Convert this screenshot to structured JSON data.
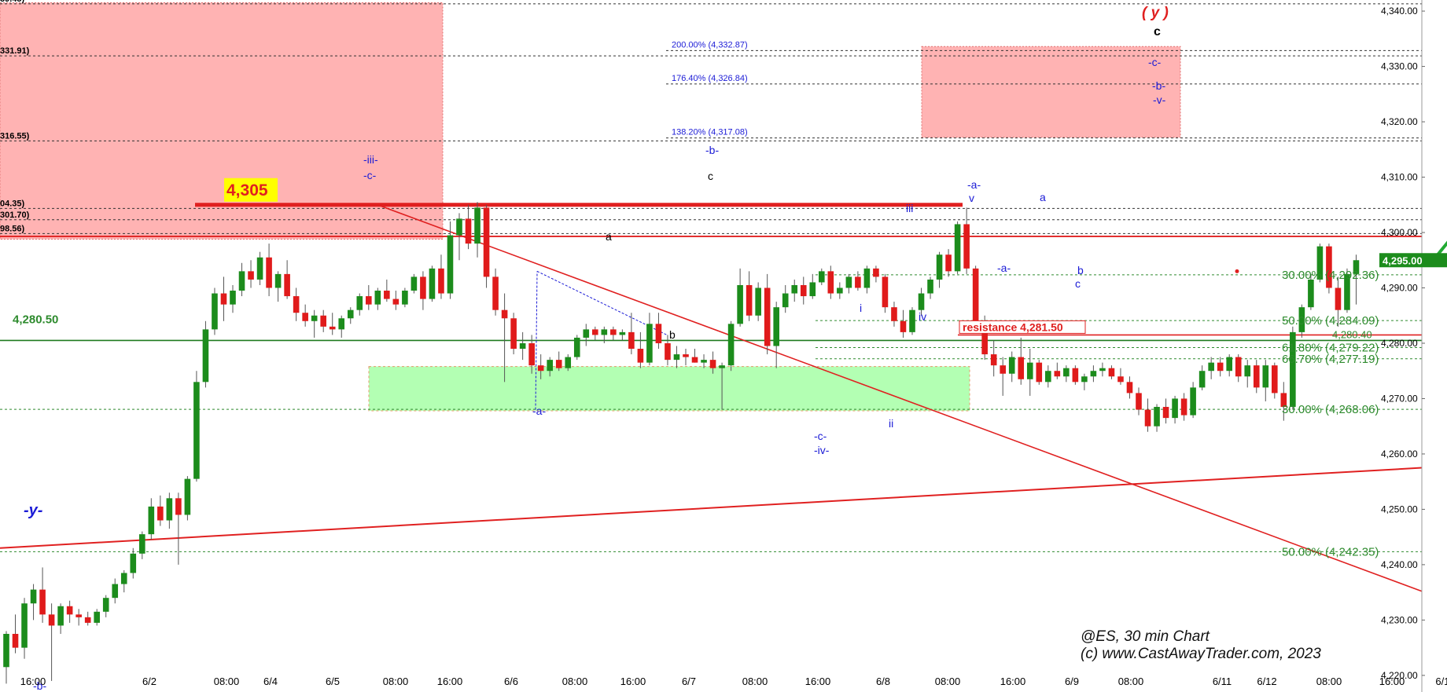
{
  "chart_data": {
    "type": "candlestick",
    "title": "@ES, 30 min Chart",
    "copyright": "(c) www.CastAwayTrader.com, 2023",
    "ylim": [
      4217,
      4342
    ],
    "y_ticks": [
      "4,220.00",
      "4,230.00",
      "4,240.00",
      "4,250.00",
      "4,260.00",
      "4,270.00",
      "4,280.00",
      "4,290.00",
      "4,300.00",
      "4,310.00",
      "4,320.00",
      "4,330.00",
      "4,340.00"
    ],
    "y_tick_values": [
      4220,
      4230,
      4240,
      4250,
      4260,
      4270,
      4280,
      4290,
      4300,
      4310,
      4320,
      4330,
      4340
    ],
    "x_ticks": [
      "16:00",
      "6/2",
      "08:00",
      "6/4",
      "6/5",
      "08:00",
      "16:00",
      "6/6",
      "08:00",
      "16:00",
      "6/7",
      "08:00",
      "16:00",
      "6/8",
      "08:00",
      "16:00",
      "6/9",
      "08:00",
      "6/11",
      "6/12",
      "08:00",
      "16:00",
      "6/13"
    ],
    "last_price": "4,295.00",
    "last_price_value": 4295.0,
    "colors": {
      "up": "#1c8c1c",
      "down": "#e01b1b",
      "fib_blue": "#1b1bd6",
      "fib_green": "#2e8b2e",
      "wave_black": "#000000",
      "red_zone": "#ffb3b3",
      "green_zone": "#b3ffb3",
      "path_green": "#22aa33",
      "path_red": "#e81c1c"
    },
    "fib_levels_blue": [
      {
        "label": "200.00% (4,332.87)",
        "value": 4332.87
      },
      {
        "label": "176.40% (4,326.84)",
        "value": 4326.84
      },
      {
        "label": "138.20% (4,317.08)",
        "value": 4317.08
      }
    ],
    "fib_levels_green": [
      {
        "label": "30.00% (4,292.36)",
        "value": 4292.36
      },
      {
        "label": "50.00% (4,284.09)",
        "value": 4284.09
      },
      {
        "label": "61.80% (4,279.22)",
        "value": 4279.22
      },
      {
        "label": "66.70% (4,277.19)",
        "value": 4277.19
      },
      {
        "label": "30.00% (4,268.06)",
        "value": 4268.06
      },
      {
        "label": "50.00% (4,242.35)",
        "value": 4242.35
      }
    ],
    "left_partial_labels": [
      {
        "label": "39.45)",
        "value": 4341.3
      },
      {
        "label": "331.91)",
        "value": 4331.91
      },
      {
        "label": "316.55)",
        "value": 4316.55
      },
      {
        "label": "04.35)",
        "value": 4304.35
      },
      {
        "label": "301.70)",
        "value": 4302.3
      },
      {
        "label": "98.56)",
        "value": 4299.8
      }
    ],
    "key_levels": {
      "top_resistance_label": "4,305",
      "top_resistance_value": 4305.0,
      "support_label": "4,280.50",
      "support_value": 4280.5,
      "resistance_text": "resistance  4,281.50",
      "resistance_value": 4281.5,
      "right_small_value": "4,280.40"
    },
    "wave_labels_blue": [
      "-iii-",
      "-c-",
      "-b-",
      "-a-",
      "i",
      "ii",
      "iii",
      "iv",
      "v",
      "-c-",
      "-iv-",
      "-a-",
      "-a-",
      "a",
      "b",
      "c",
      "-b-",
      "-v-",
      "-c-",
      "-y-",
      "-b-"
    ],
    "wave_labels_black": [
      "a",
      "b",
      "c",
      "c"
    ],
    "wave_label_red": "( y )",
    "candles": [
      {
        "o": 4221.5,
        "h": 4228.0,
        "l": 4218.5,
        "c": 4227.5
      },
      {
        "o": 4227.5,
        "h": 4231.0,
        "l": 4224.0,
        "c": 4225.0
      },
      {
        "o": 4225.0,
        "h": 4234.0,
        "l": 4223.0,
        "c": 4233.0
      },
      {
        "o": 4233.0,
        "h": 4236.5,
        "l": 4230.0,
        "c": 4235.5
      },
      {
        "o": 4235.5,
        "h": 4239.5,
        "l": 4229.5,
        "c": 4231.0
      },
      {
        "o": 4231.0,
        "h": 4233.0,
        "l": 4219.0,
        "c": 4229.0
      },
      {
        "o": 4229.0,
        "h": 4233.0,
        "l": 4227.5,
        "c": 4232.5
      },
      {
        "o": 4232.5,
        "h": 4233.5,
        "l": 4229.5,
        "c": 4231.0
      },
      {
        "o": 4231.0,
        "h": 4232.0,
        "l": 4229.0,
        "c": 4230.5
      },
      {
        "o": 4230.5,
        "h": 4231.5,
        "l": 4229.0,
        "c": 4229.5
      },
      {
        "o": 4229.5,
        "h": 4232.0,
        "l": 4229.0,
        "c": 4231.5
      },
      {
        "o": 4231.5,
        "h": 4234.5,
        "l": 4230.5,
        "c": 4234.0
      },
      {
        "o": 4234.0,
        "h": 4237.5,
        "l": 4233.0,
        "c": 4236.5
      },
      {
        "o": 4236.5,
        "h": 4239.0,
        "l": 4235.0,
        "c": 4238.5
      },
      {
        "o": 4238.5,
        "h": 4243.0,
        "l": 4237.5,
        "c": 4242.0
      },
      {
        "o": 4242.0,
        "h": 4246.0,
        "l": 4241.0,
        "c": 4245.5
      },
      {
        "o": 4245.5,
        "h": 4252.0,
        "l": 4244.5,
        "c": 4250.5
      },
      {
        "o": 4250.5,
        "h": 4252.5,
        "l": 4247.0,
        "c": 4248.0
      },
      {
        "o": 4248.0,
        "h": 4253.0,
        "l": 4246.5,
        "c": 4252.0
      },
      {
        "o": 4252.0,
        "h": 4253.0,
        "l": 4240.0,
        "c": 4249.0
      },
      {
        "o": 4249.0,
        "h": 4256.0,
        "l": 4248.0,
        "c": 4255.5
      },
      {
        "o": 4255.5,
        "h": 4275.0,
        "l": 4255.0,
        "c": 4273.0
      },
      {
        "o": 4273.0,
        "h": 4284.0,
        "l": 4272.0,
        "c": 4282.5
      },
      {
        "o": 4282.5,
        "h": 4290.0,
        "l": 4281.5,
        "c": 4289.0
      },
      {
        "o": 4289.0,
        "h": 4292.0,
        "l": 4284.0,
        "c": 4287.0
      },
      {
        "o": 4287.0,
        "h": 4290.5,
        "l": 4285.5,
        "c": 4289.5
      },
      {
        "o": 4289.5,
        "h": 4294.5,
        "l": 4288.5,
        "c": 4293.0
      },
      {
        "o": 4293.0,
        "h": 4295.0,
        "l": 4290.0,
        "c": 4291.5
      },
      {
        "o": 4291.5,
        "h": 4296.5,
        "l": 4290.5,
        "c": 4295.5
      },
      {
        "o": 4295.5,
        "h": 4298.0,
        "l": 4288.5,
        "c": 4290.0
      },
      {
        "o": 4290.0,
        "h": 4293.0,
        "l": 4287.5,
        "c": 4292.5
      },
      {
        "o": 4292.5,
        "h": 4295.0,
        "l": 4288.0,
        "c": 4288.5
      },
      {
        "o": 4288.5,
        "h": 4290.0,
        "l": 4284.0,
        "c": 4285.5
      },
      {
        "o": 4285.5,
        "h": 4287.0,
        "l": 4283.0,
        "c": 4284.0
      },
      {
        "o": 4284.0,
        "h": 4286.0,
        "l": 4281.0,
        "c": 4285.0
      },
      {
        "o": 4285.0,
        "h": 4286.0,
        "l": 4282.0,
        "c": 4283.0
      },
      {
        "o": 4283.0,
        "h": 4285.5,
        "l": 4281.5,
        "c": 4282.5
      },
      {
        "o": 4282.5,
        "h": 4285.0,
        "l": 4281.0,
        "c": 4284.5
      },
      {
        "o": 4284.5,
        "h": 4286.5,
        "l": 4283.5,
        "c": 4286.0
      },
      {
        "o": 4286.0,
        "h": 4289.0,
        "l": 4285.0,
        "c": 4288.5
      },
      {
        "o": 4288.5,
        "h": 4290.5,
        "l": 4286.0,
        "c": 4287.0
      },
      {
        "o": 4287.0,
        "h": 4290.0,
        "l": 4286.0,
        "c": 4289.5
      },
      {
        "o": 4289.5,
        "h": 4291.5,
        "l": 4287.5,
        "c": 4288.0
      },
      {
        "o": 4288.0,
        "h": 4289.5,
        "l": 4286.0,
        "c": 4287.0
      },
      {
        "o": 4287.0,
        "h": 4290.0,
        "l": 4286.5,
        "c": 4289.5
      },
      {
        "o": 4289.5,
        "h": 4292.5,
        "l": 4289.0,
        "c": 4292.0
      },
      {
        "o": 4292.0,
        "h": 4293.0,
        "l": 4286.0,
        "c": 4288.0
      },
      {
        "o": 4288.0,
        "h": 4294.0,
        "l": 4287.5,
        "c": 4293.5
      },
      {
        "o": 4293.5,
        "h": 4296.0,
        "l": 4288.0,
        "c": 4289.0
      },
      {
        "o": 4289.0,
        "h": 4302.0,
        "l": 4288.0,
        "c": 4299.5
      },
      {
        "o": 4299.5,
        "h": 4303.5,
        "l": 4295.0,
        "c": 4302.5
      },
      {
        "o": 4302.5,
        "h": 4305.0,
        "l": 4297.0,
        "c": 4298.0
      },
      {
        "o": 4298.0,
        "h": 4305.5,
        "l": 4295.5,
        "c": 4304.5
      },
      {
        "o": 4304.5,
        "h": 4305.0,
        "l": 4290.0,
        "c": 4292.0
      },
      {
        "o": 4292.0,
        "h": 4293.5,
        "l": 4285.0,
        "c": 4286.0
      },
      {
        "o": 4286.0,
        "h": 4289.0,
        "l": 4273.0,
        "c": 4284.5
      },
      {
        "o": 4284.5,
        "h": 4285.5,
        "l": 4278.0,
        "c": 4279.0
      },
      {
        "o": 4279.0,
        "h": 4282.0,
        "l": 4277.0,
        "c": 4280.0
      },
      {
        "o": 4280.0,
        "h": 4281.5,
        "l": 4274.5,
        "c": 4276.0
      },
      {
        "o": 4276.0,
        "h": 4278.0,
        "l": 4273.5,
        "c": 4275.0
      },
      {
        "o": 4275.0,
        "h": 4277.5,
        "l": 4274.0,
        "c": 4277.0
      },
      {
        "o": 4277.0,
        "h": 4278.5,
        "l": 4275.0,
        "c": 4275.5
      },
      {
        "o": 4275.5,
        "h": 4278.0,
        "l": 4275.0,
        "c": 4277.5
      },
      {
        "o": 4277.5,
        "h": 4281.5,
        "l": 4277.0,
        "c": 4281.0
      },
      {
        "o": 4281.0,
        "h": 4283.5,
        "l": 4279.5,
        "c": 4282.5
      },
      {
        "o": 4282.5,
        "h": 4283.0,
        "l": 4280.5,
        "c": 4281.5
      },
      {
        "o": 4281.5,
        "h": 4283.0,
        "l": 4280.0,
        "c": 4282.5
      },
      {
        "o": 4282.5,
        "h": 4283.0,
        "l": 4280.5,
        "c": 4281.5
      },
      {
        "o": 4281.5,
        "h": 4282.5,
        "l": 4280.5,
        "c": 4282.0
      },
      {
        "o": 4282.0,
        "h": 4285.5,
        "l": 4278.0,
        "c": 4279.0
      },
      {
        "o": 4279.0,
        "h": 4282.0,
        "l": 4275.5,
        "c": 4276.5
      },
      {
        "o": 4276.5,
        "h": 4285.5,
        "l": 4276.0,
        "c": 4283.5
      },
      {
        "o": 4283.5,
        "h": 4285.5,
        "l": 4279.0,
        "c": 4280.0
      },
      {
        "o": 4280.0,
        "h": 4281.5,
        "l": 4276.0,
        "c": 4277.0
      },
      {
        "o": 4277.0,
        "h": 4279.5,
        "l": 4275.5,
        "c": 4278.0
      },
      {
        "o": 4278.0,
        "h": 4279.0,
        "l": 4276.0,
        "c": 4277.5
      },
      {
        "o": 4277.5,
        "h": 4279.0,
        "l": 4276.5,
        "c": 4276.5
      },
      {
        "o": 4276.5,
        "h": 4278.0,
        "l": 4275.5,
        "c": 4277.0
      },
      {
        "o": 4277.0,
        "h": 4278.5,
        "l": 4274.5,
        "c": 4275.5
      },
      {
        "o": 4275.5,
        "h": 4276.5,
        "l": 4268.0,
        "c": 4276.0
      },
      {
        "o": 4276.0,
        "h": 4284.0,
        "l": 4275.0,
        "c": 4283.5
      },
      {
        "o": 4283.5,
        "h": 4293.5,
        "l": 4283.0,
        "c": 4290.5
      },
      {
        "o": 4290.5,
        "h": 4293.0,
        "l": 4284.0,
        "c": 4285.0
      },
      {
        "o": 4285.0,
        "h": 4291.0,
        "l": 4284.0,
        "c": 4290.0
      },
      {
        "o": 4290.0,
        "h": 4292.5,
        "l": 4278.0,
        "c": 4279.5
      },
      {
        "o": 4279.5,
        "h": 4287.5,
        "l": 4275.5,
        "c": 4286.5
      },
      {
        "o": 4286.5,
        "h": 4290.5,
        "l": 4285.5,
        "c": 4289.0
      },
      {
        "o": 4289.0,
        "h": 4291.5,
        "l": 4287.5,
        "c": 4290.5
      },
      {
        "o": 4290.5,
        "h": 4292.0,
        "l": 4287.0,
        "c": 4288.5
      },
      {
        "o": 4288.5,
        "h": 4292.5,
        "l": 4288.0,
        "c": 4291.0
      },
      {
        "o": 4291.0,
        "h": 4293.5,
        "l": 4290.5,
        "c": 4293.0
      },
      {
        "o": 4293.0,
        "h": 4294.0,
        "l": 4288.0,
        "c": 4289.0
      },
      {
        "o": 4289.0,
        "h": 4291.0,
        "l": 4288.0,
        "c": 4290.0
      },
      {
        "o": 4290.0,
        "h": 4292.5,
        "l": 4289.0,
        "c": 4292.0
      },
      {
        "o": 4292.0,
        "h": 4293.0,
        "l": 4289.5,
        "c": 4290.0
      },
      {
        "o": 4290.0,
        "h": 4294.0,
        "l": 4289.0,
        "c": 4293.5
      },
      {
        "o": 4293.5,
        "h": 4294.0,
        "l": 4291.0,
        "c": 4292.0
      },
      {
        "o": 4292.0,
        "h": 4292.5,
        "l": 4285.5,
        "c": 4286.5
      },
      {
        "o": 4286.5,
        "h": 4287.5,
        "l": 4283.0,
        "c": 4284.0
      },
      {
        "o": 4284.0,
        "h": 4286.0,
        "l": 4281.0,
        "c": 4282.0
      },
      {
        "o": 4282.0,
        "h": 4286.5,
        "l": 4281.5,
        "c": 4286.0
      },
      {
        "o": 4286.0,
        "h": 4290.0,
        "l": 4285.0,
        "c": 4289.0
      },
      {
        "o": 4289.0,
        "h": 4292.0,
        "l": 4288.0,
        "c": 4291.5
      },
      {
        "o": 4291.5,
        "h": 4296.5,
        "l": 4290.0,
        "c": 4296.0
      },
      {
        "o": 4296.0,
        "h": 4297.0,
        "l": 4292.0,
        "c": 4293.0
      },
      {
        "o": 4293.0,
        "h": 4302.0,
        "l": 4292.5,
        "c": 4301.5
      },
      {
        "o": 4301.5,
        "h": 4304.5,
        "l": 4292.5,
        "c": 4293.5
      },
      {
        "o": 4293.5,
        "h": 4294.0,
        "l": 4283.0,
        "c": 4284.0
      },
      {
        "o": 4284.0,
        "h": 4285.0,
        "l": 4277.0,
        "c": 4278.0
      },
      {
        "o": 4278.0,
        "h": 4280.5,
        "l": 4274.0,
        "c": 4276.0
      },
      {
        "o": 4276.0,
        "h": 4277.5,
        "l": 4270.5,
        "c": 4274.5
      },
      {
        "o": 4274.5,
        "h": 4278.5,
        "l": 4273.0,
        "c": 4277.5
      },
      {
        "o": 4277.5,
        "h": 4281.0,
        "l": 4272.5,
        "c": 4273.5
      },
      {
        "o": 4273.5,
        "h": 4279.0,
        "l": 4270.5,
        "c": 4276.5
      },
      {
        "o": 4276.5,
        "h": 4277.0,
        "l": 4272.5,
        "c": 4273.0
      },
      {
        "o": 4273.0,
        "h": 4276.0,
        "l": 4272.0,
        "c": 4275.0
      },
      {
        "o": 4275.0,
        "h": 4276.5,
        "l": 4273.5,
        "c": 4274.0
      },
      {
        "o": 4274.0,
        "h": 4276.0,
        "l": 4273.0,
        "c": 4275.5
      },
      {
        "o": 4275.5,
        "h": 4276.0,
        "l": 4272.5,
        "c": 4273.0
      },
      {
        "o": 4273.0,
        "h": 4274.5,
        "l": 4271.5,
        "c": 4274.0
      },
      {
        "o": 4274.0,
        "h": 4276.0,
        "l": 4273.0,
        "c": 4275.0
      },
      {
        "o": 4275.0,
        "h": 4276.5,
        "l": 4274.0,
        "c": 4275.5
      },
      {
        "o": 4275.5,
        "h": 4276.0,
        "l": 4273.5,
        "c": 4274.0
      },
      {
        "o": 4274.0,
        "h": 4275.5,
        "l": 4272.5,
        "c": 4273.0
      },
      {
        "o": 4273.0,
        "h": 4274.0,
        "l": 4270.0,
        "c": 4271.0
      },
      {
        "o": 4271.0,
        "h": 4272.0,
        "l": 4267.0,
        "c": 4268.0
      },
      {
        "o": 4268.0,
        "h": 4270.0,
        "l": 4264.0,
        "c": 4265.0
      },
      {
        "o": 4265.0,
        "h": 4269.0,
        "l": 4264.0,
        "c": 4268.5
      },
      {
        "o": 4268.5,
        "h": 4270.0,
        "l": 4265.5,
        "c": 4266.5
      },
      {
        "o": 4266.5,
        "h": 4270.5,
        "l": 4265.5,
        "c": 4270.0
      },
      {
        "o": 4270.0,
        "h": 4271.0,
        "l": 4266.0,
        "c": 4267.0
      },
      {
        "o": 4267.0,
        "h": 4273.0,
        "l": 4266.5,
        "c": 4272.0
      },
      {
        "o": 4272.0,
        "h": 4276.0,
        "l": 4271.5,
        "c": 4275.0
      },
      {
        "o": 4275.0,
        "h": 4277.5,
        "l": 4273.5,
        "c": 4276.5
      },
      {
        "o": 4276.5,
        "h": 4277.5,
        "l": 4274.0,
        "c": 4275.0
      },
      {
        "o": 4275.0,
        "h": 4278.0,
        "l": 4274.0,
        "c": 4277.5
      },
      {
        "o": 4277.5,
        "h": 4278.0,
        "l": 4273.0,
        "c": 4274.0
      },
      {
        "o": 4274.0,
        "h": 4277.0,
        "l": 4272.0,
        "c": 4276.0
      },
      {
        "o": 4276.0,
        "h": 4277.0,
        "l": 4271.0,
        "c": 4272.0
      },
      {
        "o": 4272.0,
        "h": 4277.0,
        "l": 4269.5,
        "c": 4276.0
      },
      {
        "o": 4276.0,
        "h": 4276.5,
        "l": 4270.0,
        "c": 4271.0
      },
      {
        "o": 4271.0,
        "h": 4273.0,
        "l": 4266.0,
        "c": 4268.5
      },
      {
        "o": 4268.5,
        "h": 4283.0,
        "l": 4268.0,
        "c": 4282.0
      },
      {
        "o": 4282.0,
        "h": 4287.0,
        "l": 4281.0,
        "c": 4286.5
      },
      {
        "o": 4286.5,
        "h": 4292.5,
        "l": 4286.0,
        "c": 4291.5
      },
      {
        "o": 4291.5,
        "h": 4298.0,
        "l": 4291.0,
        "c": 4297.5
      },
      {
        "o": 4297.5,
        "h": 4298.0,
        "l": 4289.0,
        "c": 4290.0
      },
      {
        "o": 4290.0,
        "h": 4292.0,
        "l": 4283.0,
        "c": 4286.0
      },
      {
        "o": 4286.0,
        "h": 4293.5,
        "l": 4285.5,
        "c": 4292.5
      },
      {
        "o": 4292.5,
        "h": 4296.0,
        "l": 4287.0,
        "c": 4295.0
      }
    ],
    "projection_green_1": [
      {
        "i": 157.5,
        "v": 4295.0
      },
      {
        "i": 162.0,
        "v": 4304.0
      }
    ],
    "projection_red": [
      {
        "i": 162.0,
        "v": 4304.0
      },
      {
        "i": 168.0,
        "v": 4293.0
      },
      {
        "i": 174.0,
        "v": 4302.5
      },
      {
        "i": 181.0,
        "v": 4292.5
      }
    ],
    "projection_green_2": [
      {
        "i": 181.0,
        "v": 4292.5
      },
      {
        "i": 200.0,
        "v": 4325.5
      }
    ]
  }
}
